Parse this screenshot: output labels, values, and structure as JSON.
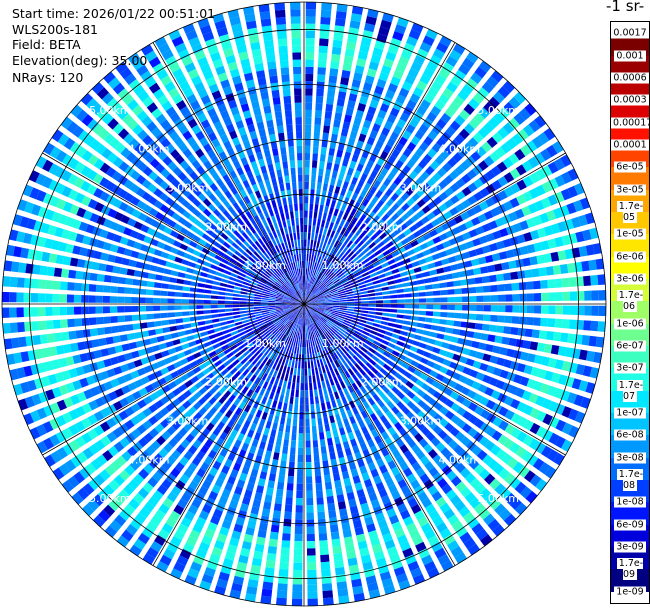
{
  "header": {
    "start_time": "Start time: 2026/01/22 00:51:01",
    "instrument": "WLS200s-181",
    "field": "Field: BETA",
    "elevation": "Elevation(deg): 35.00",
    "nrays": "NRays: 120"
  },
  "colorbar": {
    "title": "-1 sr-",
    "labels": [
      "0.0017",
      "0.001",
      "0.0006",
      "0.0003",
      "0.00017",
      "0.0001",
      "6e-05",
      "3e-05",
      "1.7e-05",
      "1e-05",
      "6e-06",
      "3e-06",
      "1.7e-06",
      "1e-06",
      "6e-07",
      "3e-07",
      "1.7e-07",
      "1e-07",
      "6e-08",
      "3e-08",
      "1.7e-08",
      "1e-08",
      "6e-09",
      "3e-09",
      "1.7e-09",
      "1e-09"
    ],
    "colors": [
      "#7a0000",
      "#9a0000",
      "#bb0000",
      "#dd0000",
      "#ff1100",
      "#ff4400",
      "#ff7a00",
      "#ffa500",
      "#ffc800",
      "#ffe600",
      "#ffff00",
      "#d4ff38",
      "#9eff66",
      "#6dff8f",
      "#3dffbf",
      "#1fffe6",
      "#00e8ff",
      "#00c4ff",
      "#0099ff",
      "#006eff",
      "#003fff",
      "#0015ff",
      "#0000dd",
      "#0000aa",
      "#000080"
    ]
  },
  "chart_data": {
    "type": "heatmap",
    "projection": "polar PPI",
    "field": "BETA",
    "elevation_deg": 35.0,
    "n_rays": 120,
    "range_unit": "km",
    "range_max_km": 5.5,
    "range_rings_km": [
      1,
      2,
      3,
      4,
      5
    ],
    "range_ring_labels": [
      "1.00km",
      "2.00km",
      "3.00km",
      "4.00km",
      "5.00km"
    ],
    "value_scale": "log",
    "value_range": [
      1e-09,
      0.0017
    ],
    "dominant_band_range_km": [
      4.3,
      5.1
    ],
    "dominant_band_value_approx": 1.7e-07,
    "background_value_approx": 3e-08
  }
}
